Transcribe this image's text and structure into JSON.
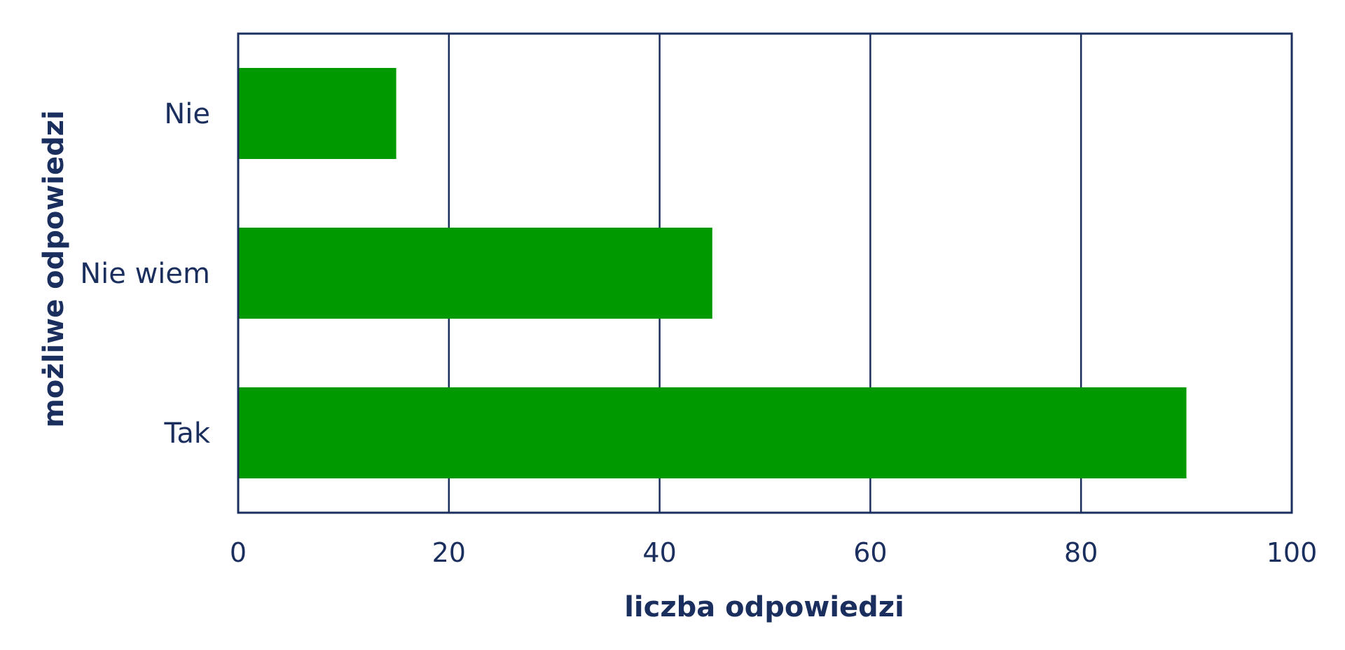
{
  "chart_data": {
    "type": "bar",
    "orientation": "horizontal",
    "categories": [
      "Nie",
      "Nie wiem",
      "Tak"
    ],
    "values": [
      15,
      45,
      90
    ],
    "title": "",
    "xlabel": "liczba odpowiedzi",
    "ylabel": "możliwe odpowiedzi",
    "xlim": [
      0,
      100
    ],
    "xticks": [
      0,
      20,
      40,
      60,
      80,
      100
    ],
    "grid": "vertical",
    "legend": "none"
  },
  "colors": {
    "bar": "#009900",
    "axis": "#1b2f5e",
    "text": "#1b2f5e",
    "background": "#ffffff"
  }
}
